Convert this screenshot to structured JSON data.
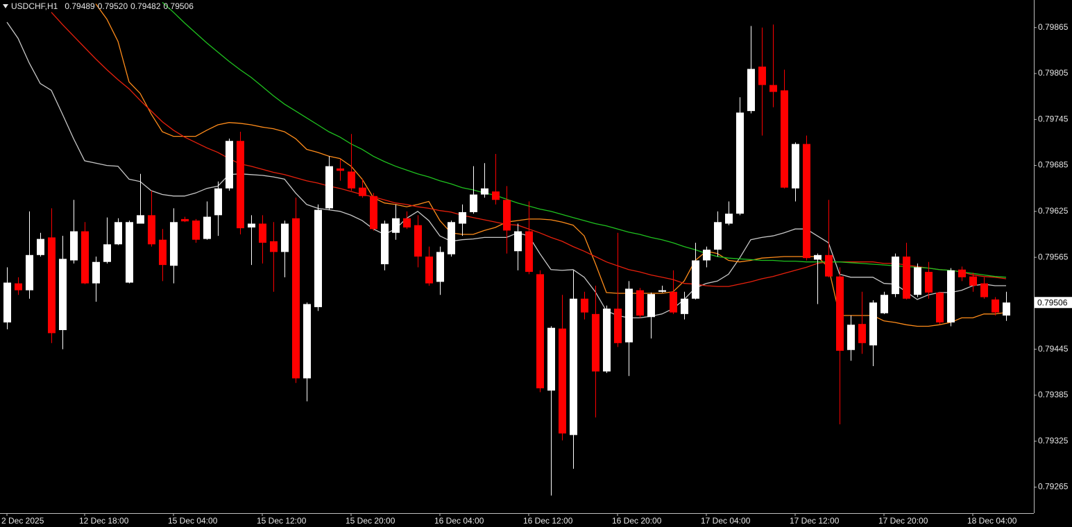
{
  "chart_data": {
    "type": "candlestick",
    "title": "USDCHF,H1",
    "last_bar_labels": [
      "0.79489",
      "0.79520",
      "0.79482",
      "0.79506"
    ],
    "categories": [
      "2 Dec 2025",
      null,
      null,
      null,
      null,
      null,
      null,
      "12 Dec 18:00",
      null,
      null,
      null,
      null,
      null,
      null,
      null,
      "15 Dec 04:00",
      null,
      null,
      null,
      null,
      null,
      null,
      null,
      "15 Dec 12:00",
      null,
      null,
      null,
      null,
      null,
      null,
      null,
      "15 Dec 20:00",
      null,
      null,
      null,
      null,
      null,
      null,
      null,
      "16 Dec 04:00",
      null,
      null,
      null,
      null,
      null,
      null,
      null,
      "16 Dec 12:00",
      null,
      null,
      null,
      null,
      null,
      null,
      null,
      "16 Dec 20:00",
      null,
      null,
      null,
      null,
      null,
      null,
      null,
      "17 Dec 04:00",
      null,
      null,
      null,
      null,
      null,
      null,
      null,
      "17 Dec 12:00",
      null,
      null,
      null,
      null,
      null,
      null,
      null,
      "17 Dec 20:00",
      null,
      null,
      null,
      null,
      null,
      null,
      null,
      "18 Dec 04:00",
      null,
      null,
      null
    ],
    "open": [
      0.7948,
      0.79531,
      0.79522,
      0.79568,
      0.79591,
      0.7947,
      0.79561,
      0.79599,
      0.79531,
      0.79559,
      0.79582,
      0.79532,
      0.79609,
      0.7962,
      0.79588,
      0.79554,
      0.79615,
      0.79613,
      0.79589,
      0.7962,
      0.79655,
      0.79717,
      0.79604,
      0.79609,
      0.79586,
      0.79572,
      0.79616,
      0.79407,
      0.795,
      0.79629,
      0.79681,
      0.79677,
      0.79656,
      0.79645,
      0.79556,
      0.79597,
      0.79616,
      0.79607,
      0.79566,
      0.79533,
      0.79569,
      0.79609,
      0.79624,
      0.79647,
      0.79651,
      0.7964,
      0.79573,
      0.79599,
      0.79543,
      0.79391,
      0.79472,
      0.79333,
      0.79511,
      0.79491,
      0.79416,
      0.79498,
      0.79454,
      0.79522,
      0.79487,
      0.7952,
      0.7952,
      0.79491,
      0.79511,
      0.79561,
      0.79575,
      0.79609,
      0.79622,
      0.79756,
      0.79814,
      0.7979,
      0.79783,
      0.79655,
      0.79713,
      0.79562,
      0.79568,
      0.7954,
      0.79444,
      0.79478,
      0.7945,
      0.79492,
      0.79517,
      0.79566,
      0.79516,
      0.79546,
      0.79519,
      0.7948,
      0.79549,
      0.7954,
      0.79531,
      0.7951,
      0.79489
    ],
    "high": [
      0.79552,
      0.79539,
      0.79625,
      0.79597,
      0.79629,
      0.79593,
      0.7964,
      0.79611,
      0.79566,
      0.79617,
      0.79616,
      0.79613,
      0.79674,
      0.79652,
      0.79602,
      0.79629,
      0.79618,
      0.79615,
      0.79638,
      0.79664,
      0.7972,
      0.79729,
      0.7962,
      0.7962,
      0.79611,
      0.79613,
      0.79643,
      0.79506,
      0.79634,
      0.79697,
      0.79693,
      0.79726,
      0.79667,
      0.79649,
      0.79613,
      0.79634,
      0.79625,
      0.7962,
      0.79579,
      0.79579,
      0.79613,
      0.79634,
      0.79684,
      0.79688,
      0.797,
      0.79658,
      0.79609,
      0.79638,
      0.79548,
      0.79475,
      0.79516,
      0.79548,
      0.7952,
      0.79528,
      0.79502,
      0.79597,
      0.79534,
      0.79525,
      0.79519,
      0.79528,
      0.79548,
      0.7952,
      0.79584,
      0.79579,
      0.79625,
      0.79638,
      0.79774,
      0.79867,
      0.79865,
      0.79869,
      0.7981,
      0.79715,
      0.79724,
      0.7957,
      0.7964,
      0.79552,
      0.79489,
      0.7952,
      0.79509,
      0.7952,
      0.7957,
      0.79584,
      0.79557,
      0.79559,
      0.7952,
      0.79551,
      0.79553,
      0.79545,
      0.79539,
      0.79513,
      0.7952
    ],
    "low": [
      0.79471,
      0.79516,
      0.79511,
      0.79566,
      0.79453,
      0.79445,
      0.79557,
      0.7953,
      0.79507,
      0.79557,
      0.79581,
      0.79531,
      0.79609,
      0.79579,
      0.79534,
      0.79531,
      0.79611,
      0.79584,
      0.79588,
      0.79593,
      0.79652,
      0.79595,
      0.79555,
      0.79557,
      0.7952,
      0.79539,
      0.79401,
      0.79377,
      0.79495,
      0.79627,
      0.79665,
      0.79652,
      0.79643,
      0.796,
      0.79548,
      0.79588,
      0.79602,
      0.79552,
      0.79528,
      0.79516,
      0.79566,
      0.79593,
      0.79622,
      0.79643,
      0.79634,
      0.7957,
      0.79548,
      0.79543,
      0.79389,
      0.79254,
      0.79326,
      0.79289,
      0.79484,
      0.79356,
      0.79414,
      0.79448,
      0.7941,
      0.79486,
      0.79459,
      0.79519,
      0.79491,
      0.79484,
      0.7951,
      0.79552,
      0.79566,
      0.79607,
      0.7962,
      0.79753,
      0.79724,
      0.79761,
      0.79655,
      0.79638,
      0.79561,
      0.79504,
      0.79539,
      0.79347,
      0.7943,
      0.79439,
      0.79423,
      0.79491,
      0.79513,
      0.7951,
      0.79513,
      0.79511,
      0.79478,
      0.79475,
      0.79534,
      0.7952,
      0.79511,
      0.79489,
      0.79482
    ],
    "close": [
      0.79532,
      0.79522,
      0.79568,
      0.79589,
      0.79466,
      0.79563,
      0.79599,
      0.79531,
      0.79559,
      0.79582,
      0.79611,
      0.79611,
      0.7962,
      0.79582,
      0.79555,
      0.79611,
      0.79612,
      0.79588,
      0.79618,
      0.79655,
      0.79717,
      0.79603,
      0.79609,
      0.79584,
      0.79572,
      0.79609,
      0.79407,
      0.79504,
      0.79627,
      0.79684,
      0.79678,
      0.79655,
      0.79645,
      0.79602,
      0.79609,
      0.79616,
      0.79604,
      0.79566,
      0.79531,
      0.79572,
      0.79611,
      0.79624,
      0.79647,
      0.79655,
      0.7964,
      0.796,
      0.79599,
      0.79546,
      0.79394,
      0.79473,
      0.79335,
      0.79511,
      0.79493,
      0.79416,
      0.79498,
      0.79453,
      0.79524,
      0.79489,
      0.79517,
      0.79522,
      0.79493,
      0.79511,
      0.79561,
      0.79575,
      0.79611,
      0.79622,
      0.79754,
      0.79811,
      0.7979,
      0.79781,
      0.79656,
      0.79713,
      0.79564,
      0.79568,
      0.7954,
      0.79443,
      0.79477,
      0.79453,
      0.79506,
      0.79516,
      0.79566,
      0.79511,
      0.79552,
      0.79519,
      0.7948,
      0.79548,
      0.79539,
      0.79528,
      0.79513,
      0.79493,
      0.79506
    ],
    "up_color": "#ffffff",
    "down_color": "#ff0000",
    "lines": [
      {
        "color": "#c8c8c8",
        "values": [
          0.79872,
          0.79851,
          0.79819,
          0.79792,
          0.79783,
          0.79752,
          0.7972,
          0.79691,
          0.79688,
          0.79685,
          0.79684,
          0.79667,
          0.79664,
          0.79652,
          0.79647,
          0.79645,
          0.79645,
          0.79649,
          0.79655,
          0.79658,
          0.79673,
          0.79674,
          0.79673,
          0.79672,
          0.7967,
          0.79667,
          0.79649,
          0.79634,
          0.79629,
          0.79627,
          0.79625,
          0.7962,
          0.79613,
          0.79602,
          0.79595,
          0.79602,
          0.79616,
          0.79625,
          0.79613,
          0.79593,
          0.79586,
          0.79588,
          0.79589,
          0.79591,
          0.79591,
          0.79591,
          0.79597,
          0.79593,
          0.7957,
          0.79549,
          0.79548,
          0.79549,
          0.79539,
          0.7952,
          0.79495,
          0.79489,
          0.79486,
          0.79486,
          0.79488,
          0.79491,
          0.79498,
          0.7951,
          0.79525,
          0.79531,
          0.79534,
          0.79543,
          0.79564,
          0.79588,
          0.79591,
          0.79593,
          0.79597,
          0.79602,
          0.79602,
          0.79593,
          0.79584,
          0.79543,
          0.79539,
          0.79539,
          0.79539,
          0.79531,
          0.7953,
          0.7952,
          0.7951,
          0.79516,
          0.79519,
          0.79519,
          0.79522,
          0.79528,
          0.7953,
          0.79528,
          0.79528
        ]
      },
      {
        "color": "#ff8c1a",
        "values": [
          null,
          null,
          null,
          null,
          null,
          null,
          null,
          null,
          0.79896,
          0.79876,
          0.79847,
          0.79794,
          0.79779,
          0.79752,
          0.79729,
          0.79723,
          0.79723,
          0.79723,
          0.79731,
          0.79738,
          0.79741,
          0.7974,
          0.79738,
          0.79735,
          0.79733,
          0.79729,
          0.7972,
          0.79706,
          0.79702,
          0.79697,
          0.79694,
          0.79684,
          0.79667,
          0.79643,
          0.79636,
          0.79634,
          0.79631,
          0.79634,
          0.79638,
          0.79613,
          0.79597,
          0.79595,
          0.79595,
          0.796,
          0.79604,
          0.79611,
          0.79613,
          0.79615,
          0.79615,
          0.79614,
          0.79611,
          0.79607,
          0.79593,
          0.79557,
          0.79519,
          0.79518,
          0.79518,
          0.79518,
          0.79518,
          0.79518,
          0.7952,
          0.79534,
          0.79561,
          0.79573,
          0.7957,
          0.79561,
          0.79559,
          0.79561,
          0.79564,
          0.79565,
          0.79566,
          0.79566,
          0.79566,
          0.79566,
          0.79552,
          0.79489,
          0.79489,
          0.79489,
          0.79489,
          0.79482,
          0.7948,
          0.79477,
          0.79475,
          0.79475,
          0.79477,
          0.7948,
          0.79486,
          0.79486,
          0.79491,
          0.79491,
          0.79493
        ]
      },
      {
        "color": "#e8200c",
        "values": [
          null,
          null,
          null,
          null,
          0.79885,
          0.79869,
          0.79854,
          0.79839,
          0.79824,
          0.7981,
          0.79797,
          0.79785,
          0.7977,
          0.79756,
          0.79742,
          0.79731,
          0.79722,
          0.79715,
          0.79708,
          0.79702,
          0.79694,
          0.79687,
          0.79684,
          0.7968,
          0.79676,
          0.79673,
          0.79669,
          0.79665,
          0.79662,
          0.79658,
          0.79655,
          0.79651,
          0.79647,
          0.79644,
          0.7964,
          0.79636,
          0.79634,
          0.79631,
          0.79629,
          0.79626,
          0.79624,
          0.7962,
          0.79617,
          0.79614,
          0.79611,
          0.79608,
          0.79607,
          0.79602,
          0.79597,
          0.79591,
          0.79586,
          0.79579,
          0.79573,
          0.79566,
          0.79559,
          0.79554,
          0.79549,
          0.79546,
          0.79542,
          0.79539,
          0.79536,
          0.79531,
          0.7953,
          0.79528,
          0.79527,
          0.79527,
          0.7953,
          0.79533,
          0.79537,
          0.7954,
          0.79544,
          0.79548,
          0.79552,
          0.79557,
          0.79559,
          0.79559,
          0.79559,
          0.79559,
          0.79559,
          0.79557,
          0.79557,
          0.79555,
          0.79553,
          0.79551,
          0.79549,
          0.79548,
          0.79546,
          0.79542,
          0.7954,
          0.79539,
          0.79537
        ]
      },
      {
        "color": "#1fc21f",
        "values": [
          null,
          null,
          null,
          null,
          null,
          null,
          null,
          null,
          null,
          null,
          null,
          null,
          null,
          null,
          0.79898,
          0.79885,
          0.79871,
          0.79858,
          0.79845,
          0.79833,
          0.79821,
          0.7981,
          0.798,
          0.79788,
          0.79776,
          0.79765,
          0.79756,
          0.79747,
          0.79738,
          0.79729,
          0.79722,
          0.79713,
          0.79706,
          0.79697,
          0.7969,
          0.79684,
          0.79679,
          0.79674,
          0.7967,
          0.79665,
          0.79661,
          0.79656,
          0.79653,
          0.79649,
          0.79646,
          0.79641,
          0.79636,
          0.79632,
          0.79628,
          0.79625,
          0.79621,
          0.79617,
          0.79613,
          0.79609,
          0.79606,
          0.79602,
          0.79598,
          0.79595,
          0.79591,
          0.79588,
          0.79584,
          0.79579,
          0.79575,
          0.7957,
          0.79566,
          0.79564,
          0.79563,
          0.79562,
          0.79561,
          0.79561,
          0.7956,
          0.7956,
          0.79559,
          0.79559,
          0.79559,
          0.79559,
          0.79558,
          0.79557,
          0.79556,
          0.79555,
          0.79554,
          0.79553,
          0.79552,
          0.79551,
          0.79549,
          0.79548,
          0.79546,
          0.79544,
          0.79542,
          0.7954,
          0.79539
        ]
      }
    ],
    "ylim": [
      0.79231,
      0.79901
    ],
    "yticks": [
      0.79865,
      0.79805,
      0.79745,
      0.79685,
      0.79625,
      0.79565,
      0.79445,
      0.79385,
      0.79325,
      0.79265
    ],
    "grid": false
  }
}
